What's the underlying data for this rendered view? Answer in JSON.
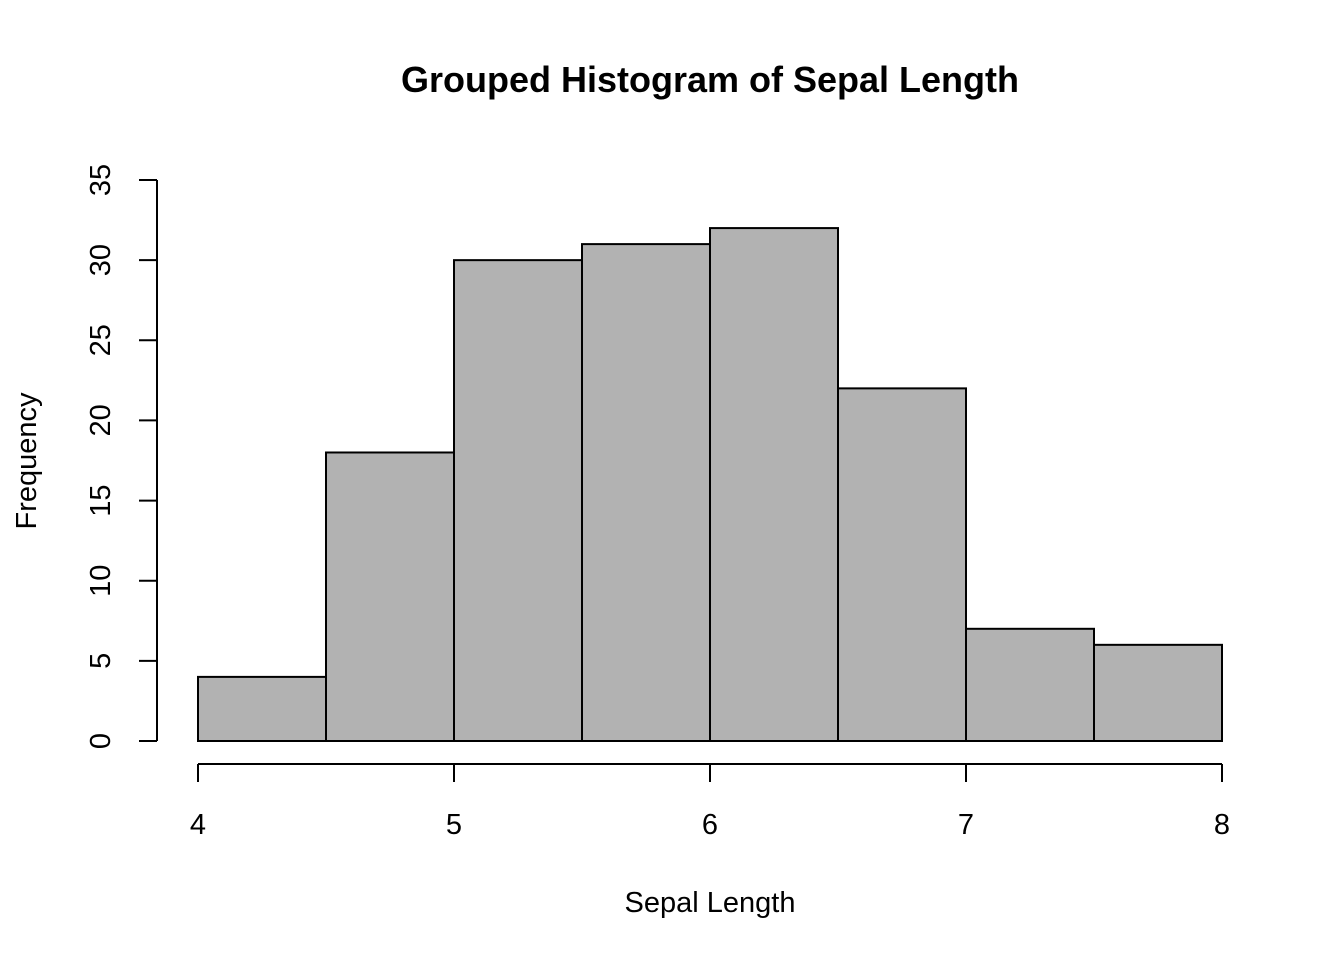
{
  "chart_data": {
    "type": "bar",
    "title": "Grouped Histogram of Sepal Length",
    "xlabel": "Sepal Length",
    "ylabel": "Frequency",
    "bin_edges": [
      4.0,
      4.5,
      5.0,
      5.5,
      6.0,
      6.5,
      7.0,
      7.5,
      8.0
    ],
    "values": [
      4,
      18,
      30,
      31,
      32,
      22,
      7,
      6
    ],
    "xlim": [
      4,
      8
    ],
    "ylim": [
      0,
      35
    ],
    "xticks": [
      4,
      5,
      6,
      7,
      8
    ],
    "yticks": [
      0,
      5,
      10,
      15,
      20,
      25,
      30,
      35
    ],
    "bar_color": "#b2b2b2",
    "grid": false
  }
}
